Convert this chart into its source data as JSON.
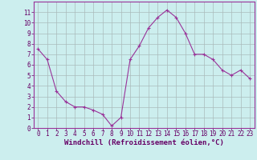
{
  "x": [
    0,
    1,
    2,
    3,
    4,
    5,
    6,
    7,
    8,
    9,
    10,
    11,
    12,
    13,
    14,
    15,
    16,
    17,
    18,
    19,
    20,
    21,
    22,
    23
  ],
  "y": [
    7.5,
    6.5,
    3.5,
    2.5,
    2.0,
    2.0,
    1.7,
    1.3,
    0.2,
    1.0,
    6.5,
    7.8,
    9.5,
    10.5,
    11.2,
    10.5,
    9.0,
    7.0,
    7.0,
    6.5,
    5.5,
    5.0,
    5.5,
    4.7
  ],
  "line_color": "#993399",
  "marker": "+",
  "marker_size": 3,
  "bg_color": "#cceeee",
  "grid_color": "#aabbbb",
  "xlabel": "Windchill (Refroidissement éolien,°C)",
  "xlim": [
    -0.5,
    23.5
  ],
  "ylim": [
    0,
    12
  ],
  "yticks": [
    0,
    1,
    2,
    3,
    4,
    5,
    6,
    7,
    8,
    9,
    10,
    11
  ],
  "xticks": [
    0,
    1,
    2,
    3,
    4,
    5,
    6,
    7,
    8,
    9,
    10,
    11,
    12,
    13,
    14,
    15,
    16,
    17,
    18,
    19,
    20,
    21,
    22,
    23
  ],
  "xlabel_fontsize": 6.5,
  "tick_fontsize": 5.5,
  "label_color": "#660066",
  "spine_color": "#993399",
  "grid_lw": 0.5,
  "line_lw": 0.8,
  "marker_lw": 0.8
}
